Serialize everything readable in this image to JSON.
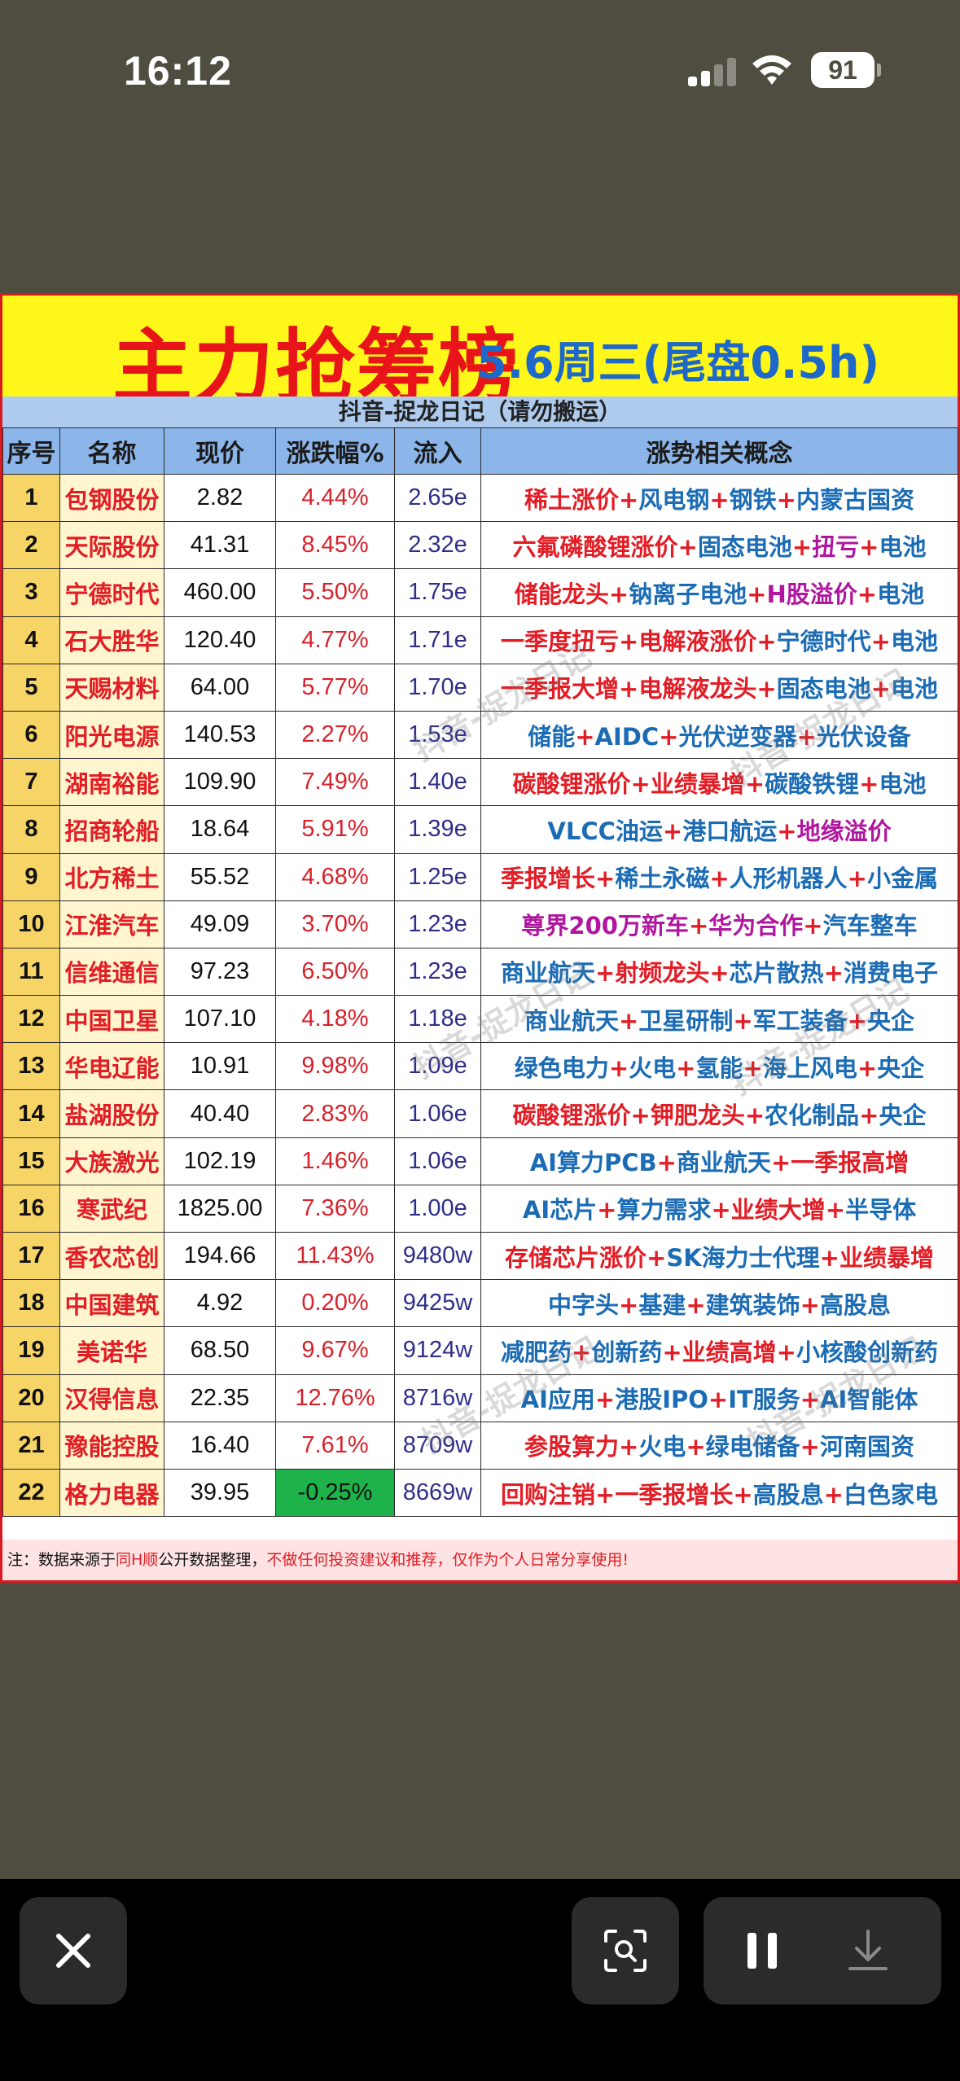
{
  "status": {
    "time": "16:12",
    "battery": "91"
  },
  "banner": {
    "title": "主力抢筹榜",
    "subtitle": "5.6周三(尾盘0.5h)"
  },
  "source_line": "抖音-捉龙日记（请勿搬运）",
  "watermark_text": "抖音-捉龙日记",
  "columns": [
    "序号",
    "名称",
    "现价",
    "涨跌幅%",
    "流入",
    "涨势相关概念"
  ],
  "rows": [
    {
      "idx": "1",
      "name": "包钢股份",
      "price": "2.82",
      "pct": "4.44%",
      "flow": "2.65e",
      "concepts": [
        {
          "t": "稀土涨价",
          "c": "red"
        },
        {
          "t": "+",
          "c": "red"
        },
        {
          "t": "风电钢",
          "c": "blue"
        },
        {
          "t": "+",
          "c": "red"
        },
        {
          "t": "钢铁",
          "c": "blue"
        },
        {
          "t": "+",
          "c": "red"
        },
        {
          "t": "内蒙古国资",
          "c": "blue"
        }
      ]
    },
    {
      "idx": "2",
      "name": "天际股份",
      "price": "41.31",
      "pct": "8.45%",
      "flow": "2.32e",
      "concepts": [
        {
          "t": "六氟磷酸锂涨价",
          "c": "red"
        },
        {
          "t": "+",
          "c": "red"
        },
        {
          "t": "固态电池",
          "c": "blue"
        },
        {
          "t": "+",
          "c": "red"
        },
        {
          "t": "扭亏",
          "c": "purple"
        },
        {
          "t": "+",
          "c": "red"
        },
        {
          "t": "电池",
          "c": "blue"
        }
      ]
    },
    {
      "idx": "3",
      "name": "宁德时代",
      "price": "460.00",
      "pct": "5.50%",
      "flow": "1.75e",
      "concepts": [
        {
          "t": "储能龙头",
          "c": "red"
        },
        {
          "t": "+",
          "c": "red"
        },
        {
          "t": "钠离子电池",
          "c": "blue"
        },
        {
          "t": "+",
          "c": "red"
        },
        {
          "t": "H股溢价",
          "c": "purple"
        },
        {
          "t": "+",
          "c": "red"
        },
        {
          "t": "电池",
          "c": "blue"
        }
      ]
    },
    {
      "idx": "4",
      "name": "石大胜华",
      "price": "120.40",
      "pct": "4.77%",
      "flow": "1.71e",
      "concepts": [
        {
          "t": "一季度扭亏",
          "c": "red"
        },
        {
          "t": "+",
          "c": "red"
        },
        {
          "t": "电解液涨价",
          "c": "red"
        },
        {
          "t": "+",
          "c": "red"
        },
        {
          "t": "宁德时代",
          "c": "blue"
        },
        {
          "t": "+",
          "c": "red"
        },
        {
          "t": "电池",
          "c": "blue"
        }
      ]
    },
    {
      "idx": "5",
      "name": "天赐材料",
      "price": "64.00",
      "pct": "5.77%",
      "flow": "1.70e",
      "concepts": [
        {
          "t": "一季报大增",
          "c": "red"
        },
        {
          "t": "+",
          "c": "red"
        },
        {
          "t": "电解液龙头",
          "c": "red"
        },
        {
          "t": "+",
          "c": "red"
        },
        {
          "t": "固态电池",
          "c": "blue"
        },
        {
          "t": "+",
          "c": "red"
        },
        {
          "t": "电池",
          "c": "blue"
        }
      ]
    },
    {
      "idx": "6",
      "name": "阳光电源",
      "price": "140.53",
      "pct": "2.27%",
      "flow": "1.53e",
      "concepts": [
        {
          "t": "储能",
          "c": "blue"
        },
        {
          "t": "+",
          "c": "red"
        },
        {
          "t": "AIDC",
          "c": "blue"
        },
        {
          "t": "+",
          "c": "red"
        },
        {
          "t": "光伏逆变器",
          "c": "blue"
        },
        {
          "t": "+",
          "c": "red"
        },
        {
          "t": "光伏设备",
          "c": "blue"
        }
      ]
    },
    {
      "idx": "7",
      "name": "湖南裕能",
      "price": "109.90",
      "pct": "7.49%",
      "flow": "1.40e",
      "concepts": [
        {
          "t": "碳酸锂涨价",
          "c": "red"
        },
        {
          "t": "+",
          "c": "red"
        },
        {
          "t": "业绩暴增",
          "c": "red"
        },
        {
          "t": "+",
          "c": "red"
        },
        {
          "t": "碳酸铁锂",
          "c": "blue"
        },
        {
          "t": "+",
          "c": "red"
        },
        {
          "t": "电池",
          "c": "blue"
        }
      ]
    },
    {
      "idx": "8",
      "name": "招商轮船",
      "price": "18.64",
      "pct": "5.91%",
      "flow": "1.39e",
      "concepts": [
        {
          "t": "VLCC油运",
          "c": "blue"
        },
        {
          "t": "+",
          "c": "red"
        },
        {
          "t": "港口航运",
          "c": "blue"
        },
        {
          "t": "+",
          "c": "red"
        },
        {
          "t": "地缘溢价",
          "c": "purple"
        }
      ]
    },
    {
      "idx": "9",
      "name": "北方稀土",
      "price": "55.52",
      "pct": "4.68%",
      "flow": "1.25e",
      "concepts": [
        {
          "t": "季报增长",
          "c": "red"
        },
        {
          "t": "+",
          "c": "red"
        },
        {
          "t": "稀土永磁",
          "c": "blue"
        },
        {
          "t": "+",
          "c": "red"
        },
        {
          "t": "人形机器人",
          "c": "blue"
        },
        {
          "t": "+",
          "c": "red"
        },
        {
          "t": "小金属",
          "c": "blue"
        }
      ]
    },
    {
      "idx": "10",
      "name": "江淮汽车",
      "price": "49.09",
      "pct": "3.70%",
      "flow": "1.23e",
      "concepts": [
        {
          "t": "尊界200万新车",
          "c": "purple"
        },
        {
          "t": "+",
          "c": "red"
        },
        {
          "t": "华为合作",
          "c": "purple"
        },
        {
          "t": "+",
          "c": "red"
        },
        {
          "t": "汽车整车",
          "c": "blue"
        }
      ]
    },
    {
      "idx": "11",
      "name": "信维通信",
      "price": "97.23",
      "pct": "6.50%",
      "flow": "1.23e",
      "concepts": [
        {
          "t": "商业航天",
          "c": "blue"
        },
        {
          "t": "+",
          "c": "red"
        },
        {
          "t": "射频龙头",
          "c": "red"
        },
        {
          "t": "+",
          "c": "red"
        },
        {
          "t": "芯片散热",
          "c": "blue"
        },
        {
          "t": "+",
          "c": "red"
        },
        {
          "t": "消费电子",
          "c": "blue"
        }
      ]
    },
    {
      "idx": "12",
      "name": "中国卫星",
      "price": "107.10",
      "pct": "4.18%",
      "flow": "1.18e",
      "concepts": [
        {
          "t": "商业航天",
          "c": "blue"
        },
        {
          "t": "+",
          "c": "red"
        },
        {
          "t": "卫星研制",
          "c": "blue"
        },
        {
          "t": "+",
          "c": "red"
        },
        {
          "t": "军工装备",
          "c": "blue"
        },
        {
          "t": "+",
          "c": "red"
        },
        {
          "t": "央企",
          "c": "blue"
        }
      ]
    },
    {
      "idx": "13",
      "name": "华电辽能",
      "price": "10.91",
      "pct": "9.98%",
      "flow": "1.09e",
      "concepts": [
        {
          "t": "绿色电力",
          "c": "blue"
        },
        {
          "t": "+",
          "c": "red"
        },
        {
          "t": "火电",
          "c": "blue"
        },
        {
          "t": "+",
          "c": "red"
        },
        {
          "t": "氢能",
          "c": "blue"
        },
        {
          "t": "+",
          "c": "red"
        },
        {
          "t": "海上风电",
          "c": "blue"
        },
        {
          "t": "+",
          "c": "red"
        },
        {
          "t": "央企",
          "c": "blue"
        }
      ]
    },
    {
      "idx": "14",
      "name": "盐湖股份",
      "price": "40.40",
      "pct": "2.83%",
      "flow": "1.06e",
      "concepts": [
        {
          "t": "碳酸锂涨价",
          "c": "red"
        },
        {
          "t": "+",
          "c": "red"
        },
        {
          "t": "钾肥龙头",
          "c": "red"
        },
        {
          "t": "+",
          "c": "red"
        },
        {
          "t": "农化制品",
          "c": "blue"
        },
        {
          "t": "+",
          "c": "red"
        },
        {
          "t": "央企",
          "c": "blue"
        }
      ]
    },
    {
      "idx": "15",
      "name": "大族激光",
      "price": "102.19",
      "pct": "1.46%",
      "flow": "1.06e",
      "concepts": [
        {
          "t": "AI算力PCB",
          "c": "blue"
        },
        {
          "t": "+",
          "c": "red"
        },
        {
          "t": "商业航天",
          "c": "blue"
        },
        {
          "t": "+",
          "c": "red"
        },
        {
          "t": "一季报高增",
          "c": "red"
        }
      ]
    },
    {
      "idx": "16",
      "name": "寒武纪",
      "price": "1825.00",
      "pct": "7.36%",
      "flow": "1.00e",
      "concepts": [
        {
          "t": "AI芯片",
          "c": "blue"
        },
        {
          "t": "+",
          "c": "red"
        },
        {
          "t": "算力需求",
          "c": "blue"
        },
        {
          "t": "+",
          "c": "red"
        },
        {
          "t": "业绩大增",
          "c": "red"
        },
        {
          "t": "+",
          "c": "red"
        },
        {
          "t": "半导体",
          "c": "blue"
        }
      ]
    },
    {
      "idx": "17",
      "name": "香农芯创",
      "price": "194.66",
      "pct": "11.43%",
      "flow": "9480w",
      "concepts": [
        {
          "t": "存储芯片涨价",
          "c": "red"
        },
        {
          "t": "+",
          "c": "red"
        },
        {
          "t": "SK海力士代理",
          "c": "blue"
        },
        {
          "t": "+",
          "c": "red"
        },
        {
          "t": "业绩暴增",
          "c": "red"
        }
      ]
    },
    {
      "idx": "18",
      "name": "中国建筑",
      "price": "4.92",
      "pct": "0.20%",
      "flow": "9425w",
      "concepts": [
        {
          "t": "中字头",
          "c": "blue"
        },
        {
          "t": "+",
          "c": "red"
        },
        {
          "t": "基建",
          "c": "blue"
        },
        {
          "t": "+",
          "c": "red"
        },
        {
          "t": "建筑装饰",
          "c": "blue"
        },
        {
          "t": "+",
          "c": "red"
        },
        {
          "t": "高股息",
          "c": "blue"
        }
      ]
    },
    {
      "idx": "19",
      "name": "美诺华",
      "price": "68.50",
      "pct": "9.67%",
      "flow": "9124w",
      "concepts": [
        {
          "t": "减肥药",
          "c": "blue"
        },
        {
          "t": "+",
          "c": "red"
        },
        {
          "t": "创新药",
          "c": "blue"
        },
        {
          "t": "+",
          "c": "red"
        },
        {
          "t": "业绩高增",
          "c": "red"
        },
        {
          "t": "+",
          "c": "red"
        },
        {
          "t": "小核酸创新药",
          "c": "blue"
        }
      ]
    },
    {
      "idx": "20",
      "name": "汉得信息",
      "price": "22.35",
      "pct": "12.76%",
      "flow": "8716w",
      "concepts": [
        {
          "t": "AI应用",
          "c": "blue"
        },
        {
          "t": "+",
          "c": "red"
        },
        {
          "t": "港股IPO",
          "c": "blue"
        },
        {
          "t": "+",
          "c": "red"
        },
        {
          "t": "IT服务",
          "c": "blue"
        },
        {
          "t": "+",
          "c": "red"
        },
        {
          "t": "AI智能体",
          "c": "blue"
        }
      ]
    },
    {
      "idx": "21",
      "name": "豫能控股",
      "price": "16.40",
      "pct": "7.61%",
      "flow": "8709w",
      "concepts": [
        {
          "t": "参股算力",
          "c": "red"
        },
        {
          "t": "+",
          "c": "red"
        },
        {
          "t": "火电",
          "c": "blue"
        },
        {
          "t": "+",
          "c": "red"
        },
        {
          "t": "绿电储备",
          "c": "blue"
        },
        {
          "t": "+",
          "c": "red"
        },
        {
          "t": "河南国资",
          "c": "blue"
        }
      ]
    },
    {
      "idx": "22",
      "name": "格力电器",
      "price": "39.95",
      "pct": "-0.25%",
      "flow": "8669w",
      "negative": true,
      "concepts": [
        {
          "t": "回购注销",
          "c": "red"
        },
        {
          "t": "+",
          "c": "red"
        },
        {
          "t": "一季报增长",
          "c": "red"
        },
        {
          "t": "+",
          "c": "red"
        },
        {
          "t": "高股息",
          "c": "blue"
        },
        {
          "t": "+",
          "c": "red"
        },
        {
          "t": "白色家电",
          "c": "blue"
        }
      ]
    }
  ],
  "footnote": {
    "prefix": "注：数据来源于",
    "source": "同H顺",
    "middle": "公开数据整理，",
    "disclaimer": "不做任何投资建议和推荐，仅作为个人日常分享使用!"
  },
  "controls": {
    "close": "close-icon",
    "scan": "scan-text-icon",
    "pause": "pause-icon",
    "download": "download-icon"
  },
  "colors": {
    "red": "#e21d25",
    "blue": "#1b6cb5",
    "purple": "#b0179e",
    "banner": "#fff61a"
  }
}
